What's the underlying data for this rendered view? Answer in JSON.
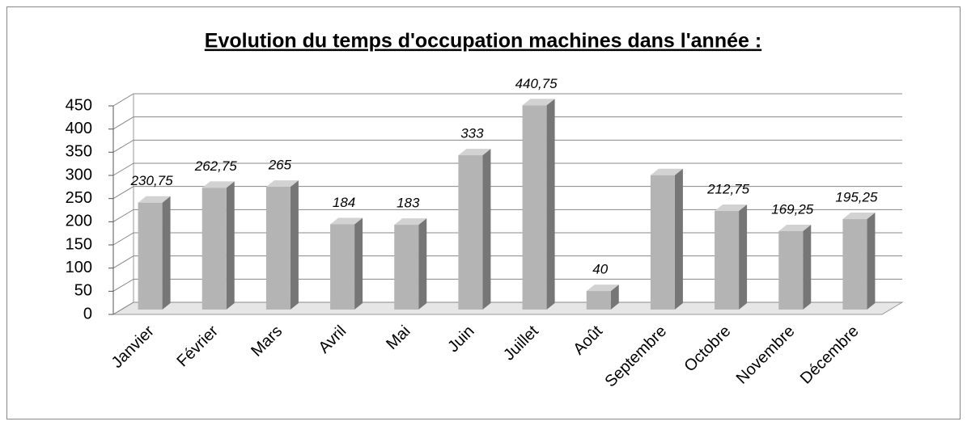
{
  "chart_data": {
    "type": "bar3d",
    "title": "Evolution du temps d'occupation machines dans l'année :",
    "categories": [
      "Janvier",
      "Février",
      "Mars",
      "Avril",
      "Mai",
      "Juin",
      "Juillet",
      "Août",
      "Septembre",
      "Octobre",
      "Novembre",
      "Décembre"
    ],
    "values": [
      230.75,
      262.75,
      265,
      184,
      183,
      333,
      440.75,
      40,
      290,
      212.75,
      169.25,
      195.25
    ],
    "value_labels": [
      "230,75",
      "262,75",
      "265",
      "184",
      "183",
      "333",
      "440,75",
      "40",
      null,
      "212,75",
      "169,25",
      "195,25"
    ],
    "color": "#b4b4b4",
    "ylim": [
      0,
      450
    ],
    "yticks": [
      0,
      50,
      100,
      150,
      200,
      250,
      300,
      350,
      400,
      450
    ],
    "grid": true
  }
}
